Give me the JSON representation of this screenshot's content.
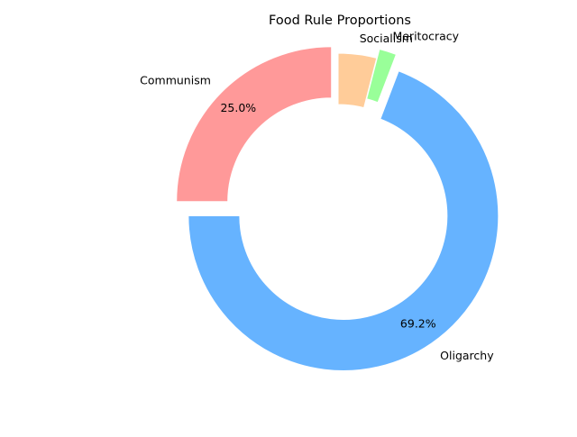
{
  "chart_data": {
    "type": "pie",
    "variant": "donut",
    "title": "Food Rule Proportions",
    "categories": [
      "Communism",
      "Oligarchy",
      "Meritocracy",
      "Socialism"
    ],
    "values": [
      25.0,
      69.2,
      1.8,
      4.0
    ],
    "value_labels": [
      "25.0%",
      "69.2%",
      "",
      ""
    ],
    "colors": [
      "#ff9999",
      "#66b3ff",
      "#99ff99",
      "#ffcc99"
    ],
    "legend": "none",
    "grid": false
  }
}
